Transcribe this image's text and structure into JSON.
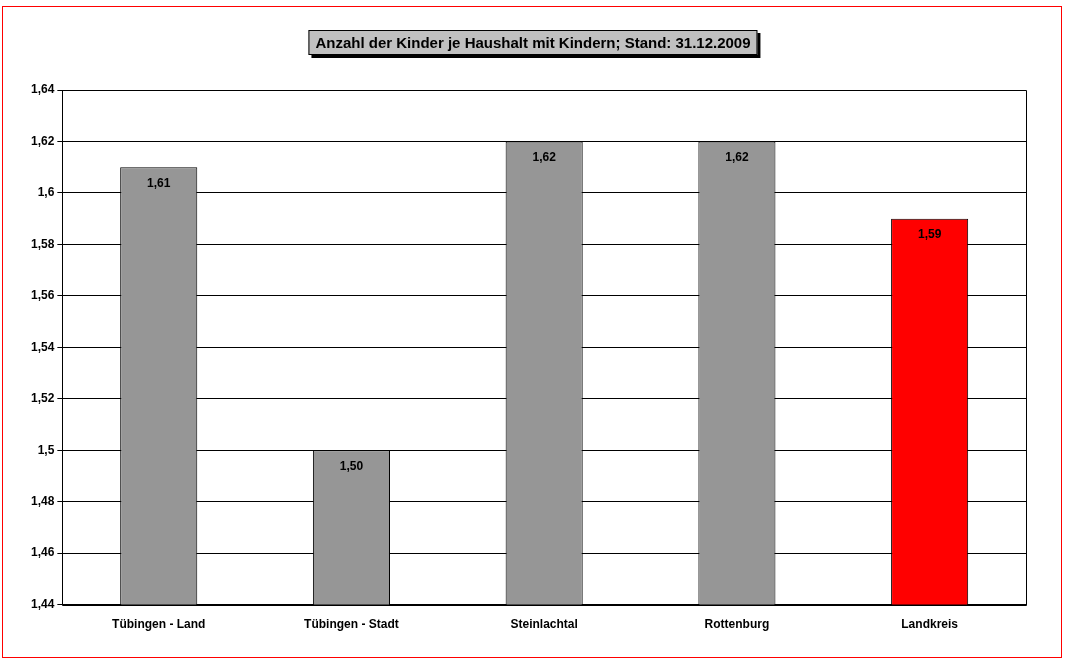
{
  "chart_data": {
    "type": "bar",
    "title": "Anzahl der Kinder je Haushalt mit Kindern; Stand: 31.12.2009",
    "categories": [
      "Tübingen - Land",
      "Tübingen - Stadt",
      "Steinlachtal",
      "Rottenburg",
      "Landkreis"
    ],
    "values": [
      1.61,
      1.5,
      1.62,
      1.62,
      1.59
    ],
    "colors": [
      "#969696",
      "#969696",
      "#969696",
      "#969696",
      "#ff0000"
    ],
    "value_labels": [
      "1,61",
      "1,50",
      "1,62",
      "1,62",
      "1,59"
    ],
    "ylim": [
      1.44,
      1.64
    ],
    "yticks": [
      {
        "value": 1.44,
        "label": "1,44"
      },
      {
        "value": 1.46,
        "label": "1,46"
      },
      {
        "value": 1.48,
        "label": "1,48"
      },
      {
        "value": 1.5,
        "label": "1,5"
      },
      {
        "value": 1.52,
        "label": "1,52"
      },
      {
        "value": 1.54,
        "label": "1,54"
      },
      {
        "value": 1.56,
        "label": "1,56"
      },
      {
        "value": 1.58,
        "label": "1,58"
      },
      {
        "value": 1.6,
        "label": "1,6"
      },
      {
        "value": 1.62,
        "label": "1,62"
      },
      {
        "value": 1.64,
        "label": "1,64"
      }
    ],
    "grid": "y",
    "legend": false
  }
}
